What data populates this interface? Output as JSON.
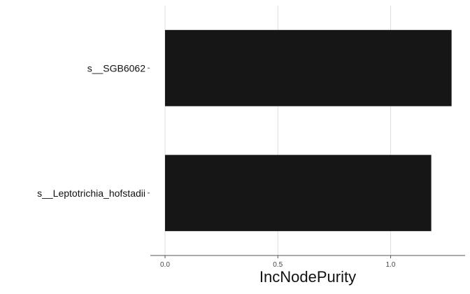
{
  "chart_data": {
    "type": "bar",
    "orientation": "horizontal",
    "categories": [
      "s__Leptotrichia_hofstadii",
      "s__SGB6062"
    ],
    "values": [
      1.18,
      1.27
    ],
    "xlabel": "IncNodePurity",
    "ylabel": "",
    "x_ticks": [
      "0.0",
      "0.5",
      "1.0"
    ],
    "xlim": [
      -0.065,
      1.33
    ],
    "grid": "vertical major",
    "bar_color": "#161616",
    "grid_color": "#dedede",
    "axis_color": "#555555"
  }
}
